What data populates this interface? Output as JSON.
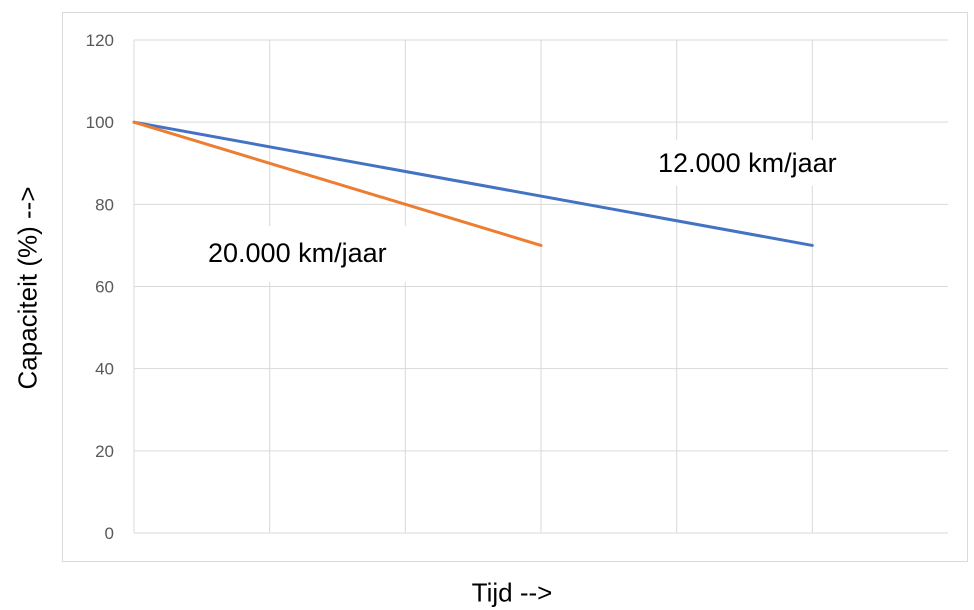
{
  "chart_data": {
    "type": "line",
    "xlabel": "Tijd -->",
    "ylabel": "Capaciteit (%) -->",
    "ylim": [
      0,
      120
    ],
    "yticks": [
      "0",
      "20",
      "40",
      "60",
      "80",
      "100",
      "120"
    ],
    "xlim": [
      0,
      6
    ],
    "grid": true,
    "series": [
      {
        "name": "12.000 km/jaar",
        "color": "#4472c4",
        "x": [
          0,
          5
        ],
        "values": [
          100,
          70
        ]
      },
      {
        "name": "20.000 km/jaar",
        "color": "#ed7d31",
        "x": [
          0,
          3
        ],
        "values": [
          100,
          70
        ]
      }
    ]
  }
}
